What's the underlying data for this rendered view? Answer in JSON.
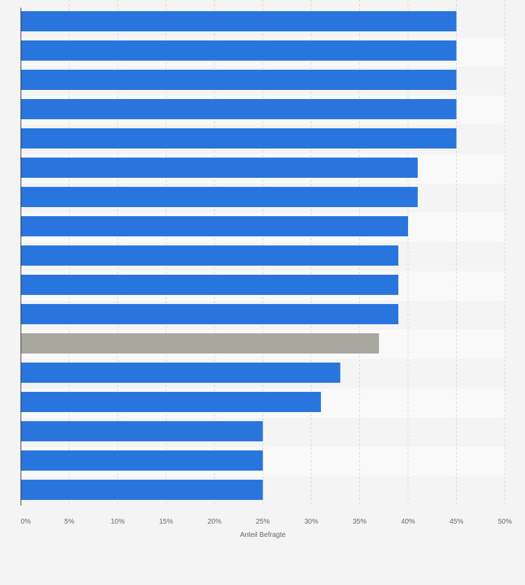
{
  "chart_data": {
    "type": "bar",
    "orientation": "horizontal",
    "title": "",
    "xlabel": "Anteil Befragte",
    "ylabel": "",
    "xlim": [
      0,
      50
    ],
    "x_ticks": [
      0,
      5,
      10,
      15,
      20,
      25,
      30,
      35,
      40,
      45,
      50
    ],
    "x_tick_labels": [
      "0%",
      "5%",
      "10%",
      "15%",
      "20%",
      "25%",
      "30%",
      "35%",
      "40%",
      "45%",
      "50%"
    ],
    "categories": [
      "",
      "",
      "",
      "",
      "",
      "",
      "",
      "",
      "",
      "",
      "",
      "",
      "",
      "",
      "",
      "",
      ""
    ],
    "values": [
      45,
      45,
      45,
      45,
      45,
      41,
      41,
      40,
      39,
      39,
      39,
      37,
      33,
      31,
      25,
      25,
      25
    ],
    "highlighted_index": 11,
    "grid": true,
    "colors": {
      "bar": "#2876dd",
      "highlight": "#a8a8a0",
      "row_alt": "#f9f9f9",
      "row": "#f4f4f4",
      "grid": "#d8d8d8",
      "axis": "#333333"
    }
  }
}
